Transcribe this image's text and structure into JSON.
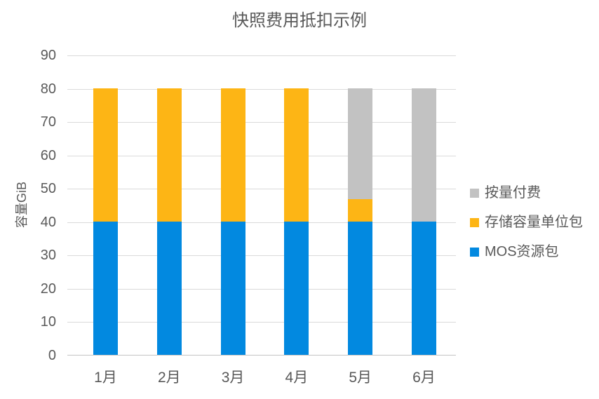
{
  "chart_data": {
    "type": "bar",
    "stacked": true,
    "title": "快照费用抵扣示例",
    "ylabel": "容量GiB",
    "xlabel": "",
    "categories": [
      "1月",
      "2月",
      "3月",
      "4月",
      "5月",
      "6月"
    ],
    "series": [
      {
        "name": "MOS资源包",
        "color": "#0289e0",
        "values": [
          40,
          40,
          40,
          40,
          40,
          40
        ]
      },
      {
        "name": "存储容量单位包",
        "color": "#fdb515",
        "values": [
          40,
          40,
          40,
          40,
          6.7,
          0
        ]
      },
      {
        "name": "按量付费",
        "color": "#c2c2c2",
        "values": [
          0,
          0,
          0,
          0,
          33.3,
          40
        ]
      }
    ],
    "bar_totals": [
      80,
      80,
      80,
      80,
      80,
      80
    ],
    "ylim": [
      0,
      90
    ],
    "ytick_step": 10,
    "yticks": [
      "0",
      "10",
      "20",
      "30",
      "40",
      "50",
      "60",
      "70",
      "80",
      "90"
    ],
    "grid": true,
    "legend_position": "right",
    "legend_order": [
      "按量付费",
      "存储容量单位包",
      "MOS资源包"
    ]
  },
  "colors": {
    "background": "#ffffff",
    "text": "#595959",
    "gridline": "#dadada",
    "axis_line": "#c3c3c3",
    "blue": "#0289e0",
    "orange": "#fdb515",
    "gray": "#c2c2c2"
  }
}
